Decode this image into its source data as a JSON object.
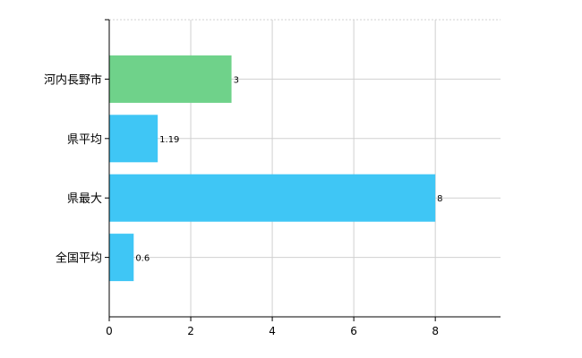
{
  "chart_data": {
    "type": "bar",
    "orientation": "horizontal",
    "categories": [
      "河内長野市",
      "県平均",
      "県最大",
      "全国平均"
    ],
    "values": [
      3,
      1.19,
      8,
      0.6
    ],
    "value_labels": [
      "3",
      "1.19",
      "8",
      "0.6"
    ],
    "bar_colors": [
      "#6fd28a",
      "#3fc6f5",
      "#3fc6f5",
      "#3fc6f5"
    ],
    "title": "",
    "xlabel": "",
    "ylabel": "",
    "xlim": [
      0,
      9.6
    ],
    "x_ticks": [
      0,
      2,
      4,
      6,
      8
    ],
    "x_tick_labels": [
      "0",
      "2",
      "4",
      "6",
      "8"
    ],
    "grid": true
  }
}
